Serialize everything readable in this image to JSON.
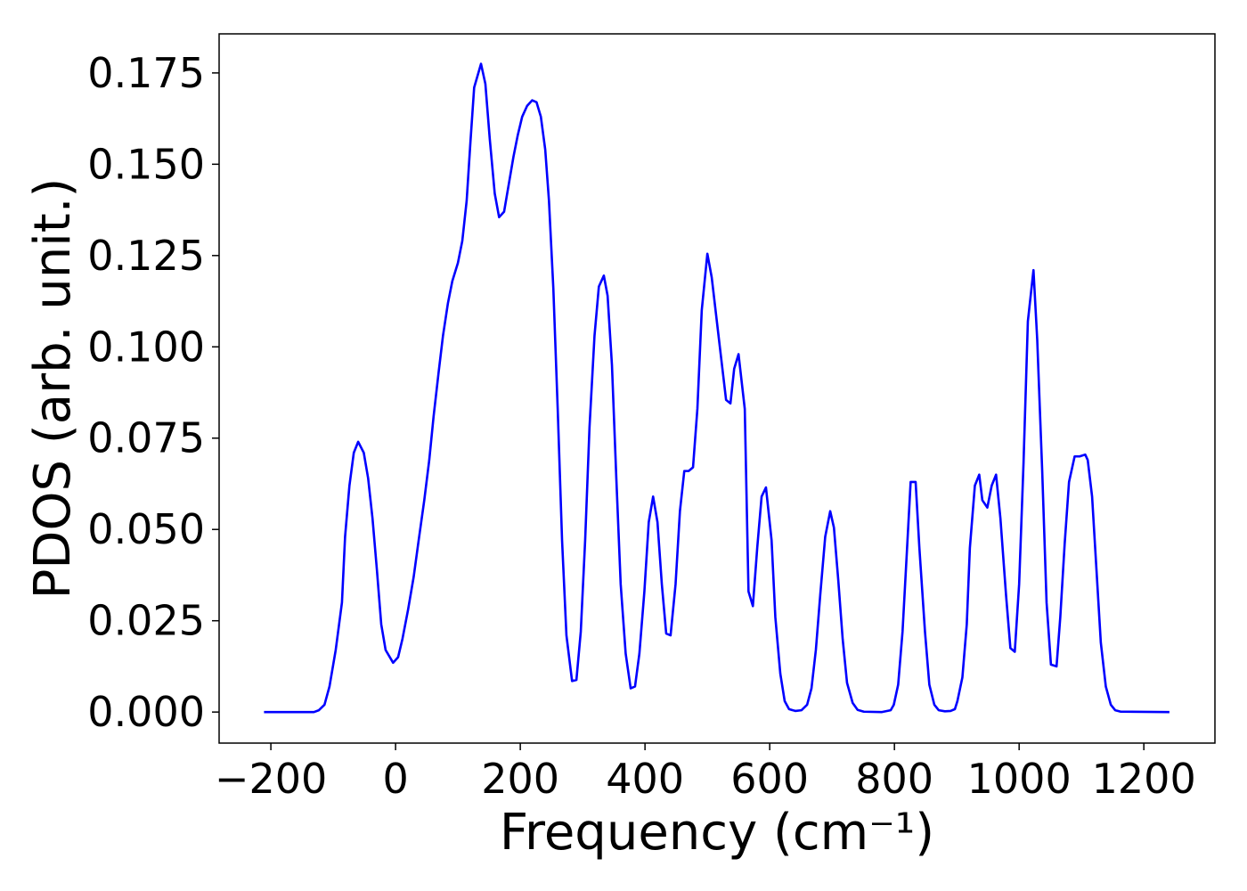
{
  "chart_data": {
    "type": "line",
    "xlabel": "Frequency (cm⁻¹)",
    "ylabel": "PDOS (arb. unit.)",
    "color": "#0000ff",
    "xlim": [
      -283,
      1314
    ],
    "ylim": [
      -0.0085,
      0.1857
    ],
    "xticks": [
      {
        "value": -200,
        "label": "−200"
      },
      0,
      200,
      400,
      600,
      800,
      1000,
      1200
    ],
    "yticks": [
      {
        "value": 0,
        "label": "0.000"
      },
      {
        "value": 0.025,
        "label": "0.025"
      },
      {
        "value": 0.05,
        "label": "0.050"
      },
      {
        "value": 0.075,
        "label": "0.075"
      },
      {
        "value": 0.1,
        "label": "0.100"
      },
      {
        "value": 0.125,
        "label": "0.125"
      },
      {
        "value": 0.15,
        "label": "0.150"
      },
      {
        "value": 0.175,
        "label": "0.175"
      }
    ],
    "x": [
      -211,
      -131,
      -123,
      -114,
      -106,
      -96,
      -86,
      -81,
      -74,
      -67,
      -60,
      -51,
      -44,
      -37,
      -30,
      -23,
      -16,
      -4,
      4,
      11,
      20,
      29,
      37,
      46,
      54,
      61,
      69,
      76,
      84,
      91,
      100,
      107,
      114,
      120,
      126,
      137,
      144,
      151,
      159,
      166,
      174,
      181,
      189,
      196,
      203,
      211,
      219,
      226,
      233,
      240,
      246,
      253,
      260,
      267,
      274,
      283,
      290,
      297,
      304,
      311,
      319,
      326,
      334,
      340,
      347,
      354,
      361,
      369,
      377,
      384,
      391,
      399,
      406,
      413,
      420,
      427,
      434,
      441,
      449,
      456,
      463,
      470,
      477,
      484,
      491,
      500,
      507,
      520,
      530,
      537,
      543,
      550,
      560,
      566,
      573,
      580,
      587,
      594,
      603,
      609,
      617,
      624,
      631,
      641,
      651,
      660,
      667,
      674,
      681,
      689,
      697,
      703,
      710,
      717,
      724,
      733,
      741,
      751,
      780,
      794,
      799,
      806,
      813,
      820,
      826,
      834,
      840,
      849,
      856,
      864,
      871,
      881,
      890,
      897,
      901,
      909,
      916,
      921,
      929,
      936,
      941,
      949,
      956,
      963,
      970,
      979,
      986,
      993,
      1000,
      1007,
      1014,
      1023,
      1029,
      1037,
      1044,
      1051,
      1060,
      1066,
      1073,
      1080,
      1089,
      1097,
      1106,
      1110,
      1117,
      1124,
      1131,
      1139,
      1147,
      1154,
      1163,
      1241
    ],
    "values": [
      0,
      0,
      0.0005,
      0.002,
      0.007,
      0.017,
      0.03,
      0.048,
      0.062,
      0.071,
      0.074,
      0.071,
      0.064,
      0.053,
      0.039,
      0.024,
      0.017,
      0.0135,
      0.015,
      0.02,
      0.028,
      0.037,
      0.047,
      0.058,
      0.069,
      0.081,
      0.093,
      0.103,
      0.112,
      0.118,
      0.123,
      0.129,
      0.14,
      0.156,
      0.171,
      0.1775,
      0.172,
      0.157,
      0.142,
      0.1355,
      0.137,
      0.144,
      0.152,
      0.158,
      0.163,
      0.166,
      0.1675,
      0.167,
      0.163,
      0.154,
      0.14,
      0.116,
      0.083,
      0.047,
      0.021,
      0.0085,
      0.0088,
      0.022,
      0.047,
      0.078,
      0.103,
      0.1165,
      0.1195,
      0.114,
      0.095,
      0.064,
      0.035,
      0.016,
      0.0065,
      0.007,
      0.016,
      0.033,
      0.052,
      0.059,
      0.052,
      0.035,
      0.0215,
      0.021,
      0.035,
      0.055,
      0.066,
      0.066,
      0.067,
      0.083,
      0.11,
      0.1255,
      0.119,
      0.1,
      0.0855,
      0.0845,
      0.094,
      0.098,
      0.083,
      0.033,
      0.029,
      0.045,
      0.059,
      0.0615,
      0.047,
      0.026,
      0.0105,
      0.003,
      0.0008,
      0.0003,
      0.0005,
      0.002,
      0.0065,
      0.017,
      0.032,
      0.048,
      0.055,
      0.0505,
      0.036,
      0.02,
      0.008,
      0.0025,
      0.0006,
      0.0001,
      0,
      0.0005,
      0.002,
      0.0075,
      0.022,
      0.044,
      0.063,
      0.063,
      0.045,
      0.022,
      0.0075,
      0.002,
      0.0005,
      0.0002,
      0.0003,
      0.0008,
      0.003,
      0.0095,
      0.024,
      0.045,
      0.062,
      0.065,
      0.058,
      0.056,
      0.062,
      0.065,
      0.053,
      0.032,
      0.0175,
      0.0165,
      0.035,
      0.068,
      0.107,
      0.121,
      0.102,
      0.066,
      0.03,
      0.013,
      0.0125,
      0.026,
      0.046,
      0.063,
      0.07,
      0.07,
      0.0705,
      0.069,
      0.059,
      0.039,
      0.019,
      0.007,
      0.002,
      0.0005,
      0.0001,
      0
    ]
  }
}
